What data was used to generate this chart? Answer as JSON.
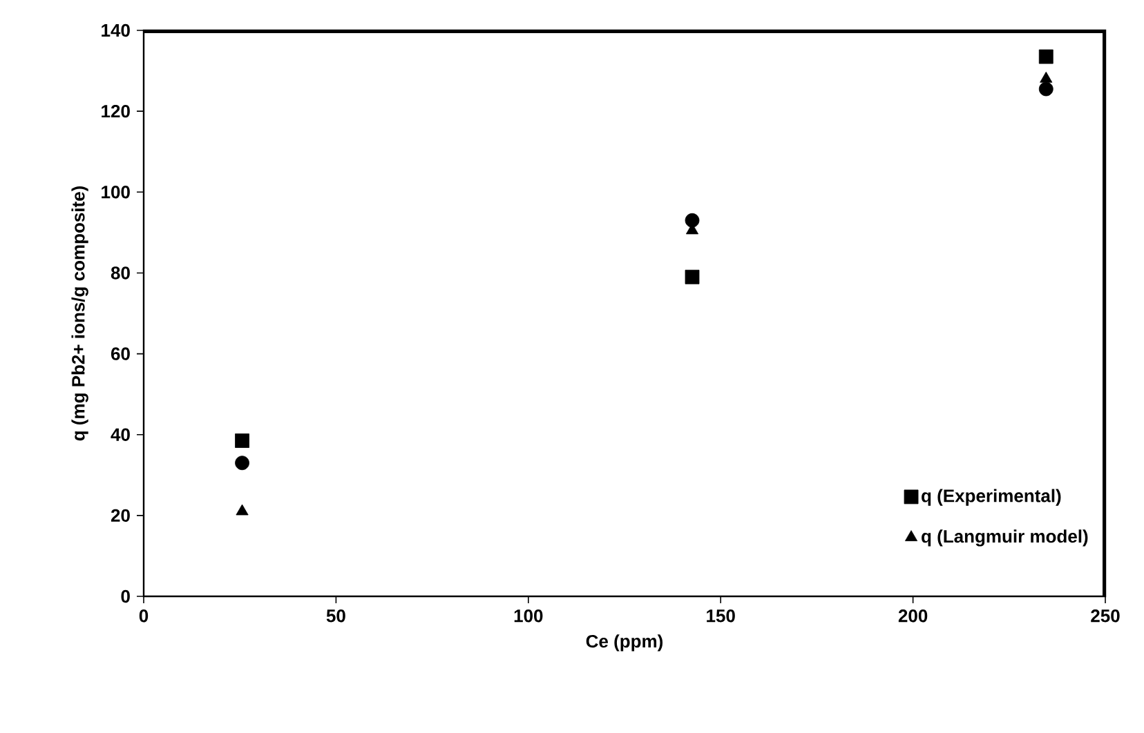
{
  "chart_data": {
    "type": "scatter",
    "xlabel": "Ce (ppm)",
    "ylabel": "q (mg Pb2+ ions/g composite)",
    "x": [
      25.6,
      142.6,
      234.6
    ],
    "series": [
      {
        "name": "q (Experimental)",
        "color": "#000000",
        "marker": "square",
        "values": [
          38.5,
          79,
          133.5
        ]
      },
      {
        "color": "#000000",
        "marker": "circle",
        "values": [
          33,
          93,
          125.5
        ]
      },
      {
        "name": "q (Langmuir model)",
        "color": "#000000",
        "marker": "triangle",
        "values": [
          21,
          90.5,
          128
        ]
      }
    ],
    "xlim": [
      0,
      250
    ],
    "xticks": [
      0,
      50,
      100,
      150,
      200,
      250
    ],
    "ylim": [
      0,
      140
    ],
    "yticks": [
      0,
      20,
      40,
      60,
      80,
      100,
      120,
      140
    ],
    "grid": false,
    "legend": "bottom right"
  }
}
